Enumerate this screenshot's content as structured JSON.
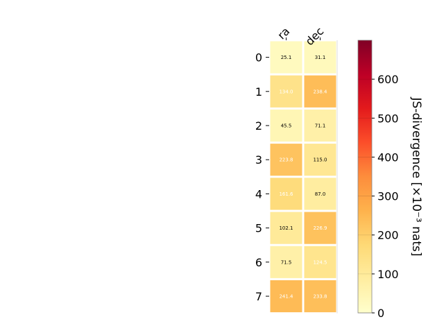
{
  "chart_data": {
    "type": "heatmap",
    "title": "",
    "xlabel": "",
    "ylabel": "",
    "columns": [
      "ra",
      "dec"
    ],
    "rows": [
      "0",
      "1",
      "2",
      "3",
      "4",
      "5",
      "6",
      "7"
    ],
    "values": [
      [
        25.1,
        31.1
      ],
      [
        134.0,
        238.4
      ],
      [
        45.5,
        71.1
      ],
      [
        223.8,
        115.0
      ],
      [
        161.6,
        87.0
      ],
      [
        102.1,
        226.9
      ],
      [
        71.5,
        124.5
      ],
      [
        241.4,
        233.8
      ]
    ],
    "value_labels": [
      [
        "25.1",
        "31.1"
      ],
      [
        "134.0",
        "238.4"
      ],
      [
        "45.5",
        "71.1"
      ],
      [
        "223.8",
        "115.0"
      ],
      [
        "161.6",
        "87.0"
      ],
      [
        "102.1",
        "226.9"
      ],
      [
        "71.5",
        "124.5"
      ],
      [
        "241.4",
        "233.8"
      ]
    ],
    "colorbar": {
      "label": "JS-divergence [×10⁻³ nats]",
      "range": [
        0,
        700
      ],
      "ticks": [
        0,
        100,
        200,
        300,
        400,
        500,
        600
      ],
      "tick_labels": [
        "0",
        "100",
        "200",
        "300",
        "400",
        "500",
        "600"
      ],
      "colormap": "YlOrRd",
      "colormap_stops": [
        "#ffffcc",
        "#ffeda0",
        "#fed976",
        "#feb24c",
        "#fd8d3c",
        "#fc4e2a",
        "#e31a1c",
        "#bd0026",
        "#800026"
      ]
    },
    "grid": false
  }
}
